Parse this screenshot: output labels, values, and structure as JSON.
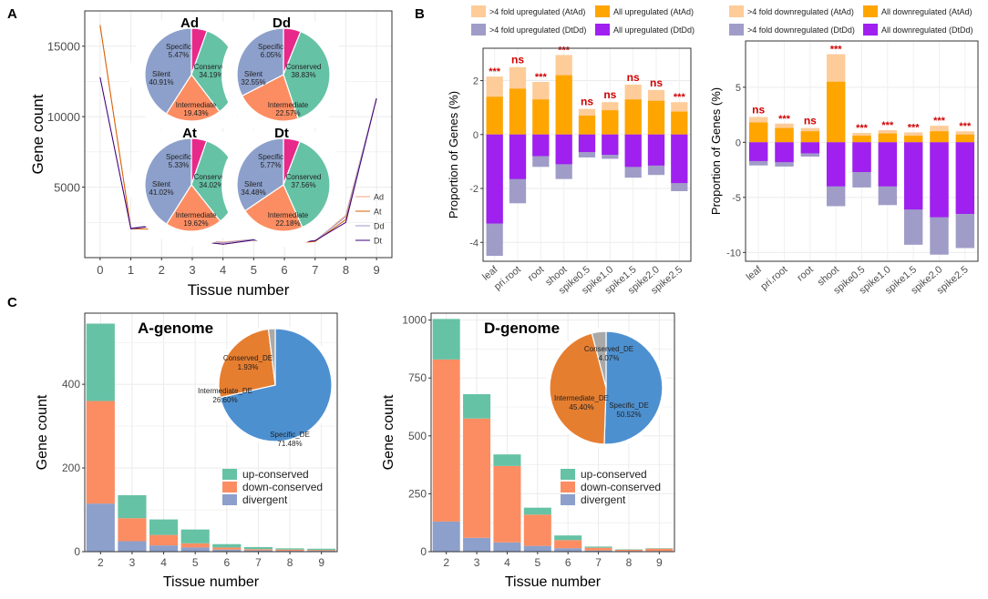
{
  "panel_labels": {
    "a": "A",
    "b": "B",
    "c": "C"
  },
  "colors": {
    "ad": "#f4a582",
    "at": "#d95f02",
    "dd": "#9e9ac8",
    "dt": "#3f007d",
    "pie_specific": "#e7298a",
    "pie_conserved": "#66c2a5",
    "pie_intermediate": "#fc8d62",
    "pie_silent": "#8da0cb",
    "light_orange": "#fdcc99",
    "orange": "#ffa500",
    "light_purple": "#a09cc8",
    "purple": "#a020f0",
    "up_conserved": "#66c2a5",
    "down_conserved": "#fc8d62",
    "divergent": "#8da0cb",
    "spec_de": "#4d90d0",
    "inter_de": "#e67e30",
    "cons_de": "#a9a9a9",
    "sig": "#d00000"
  },
  "chart_data": [
    {
      "id": "A",
      "type": "line",
      "xlabel": "Tissue number",
      "ylabel": "Gene count",
      "x": [
        0,
        1,
        2,
        3,
        4,
        5,
        6,
        7,
        8,
        9
      ],
      "xticks": [
        "0",
        "1",
        "2",
        "3",
        "4",
        "5",
        "6",
        "7",
        "8",
        "9"
      ],
      "ylim": [
        0,
        17500
      ],
      "yticks": [
        5000,
        10000,
        15000
      ],
      "legend": [
        "Ad",
        "At",
        "Dd",
        "Dt"
      ],
      "series": [
        {
          "name": "Ad",
          "values": [
            16500,
            2100,
            2350,
            1300,
            1100,
            1300,
            1000,
            1150,
            3000,
            11300
          ]
        },
        {
          "name": "At",
          "values": [
            16500,
            2050,
            2000,
            1200,
            950,
            1250,
            950,
            1150,
            2700,
            11300
          ]
        },
        {
          "name": "Dd",
          "values": [
            12800,
            2100,
            2400,
            1300,
            1050,
            1300,
            1050,
            1200,
            2900,
            11300
          ]
        },
        {
          "name": "Dt",
          "values": [
            12800,
            2050,
            2300,
            1200,
            950,
            1250,
            950,
            1200,
            2500,
            11300
          ]
        }
      ],
      "pies": [
        {
          "title": "Ad",
          "slices": [
            {
              "label": "Specific",
              "value": 5.47,
              "text": "5.47%"
            },
            {
              "label": "Conserved",
              "value": 34.19,
              "text": "34.19%"
            },
            {
              "label": "Intermediate",
              "value": 19.43,
              "text": "19.43%"
            },
            {
              "label": "Silent",
              "value": 40.91,
              "text": "40.91%"
            }
          ]
        },
        {
          "title": "Dd",
          "slices": [
            {
              "label": "Specific",
              "value": 6.05,
              "text": "6.05%"
            },
            {
              "label": "Conserved",
              "value": 38.83,
              "text": "38.83%"
            },
            {
              "label": "Intermediate",
              "value": 22.57,
              "text": "22.57%"
            },
            {
              "label": "Silent",
              "value": 32.55,
              "text": "32.55%"
            }
          ]
        },
        {
          "title": "At",
          "slices": [
            {
              "label": "Specific",
              "value": 5.33,
              "text": "5.33%"
            },
            {
              "label": "Conserved",
              "value": 34.02,
              "text": "34.02%"
            },
            {
              "label": "Intermediate",
              "value": 19.62,
              "text": "19.62%"
            },
            {
              "label": "Silent",
              "value": 41.02,
              "text": "41.02%"
            }
          ]
        },
        {
          "title": "Dt",
          "slices": [
            {
              "label": "Specific",
              "value": 5.77,
              "text": "5.77%"
            },
            {
              "label": "Conserved",
              "value": 37.56,
              "text": "37.56%"
            },
            {
              "label": "Intermediate",
              "value": 22.18,
              "text": "22.18%"
            },
            {
              "label": "Silent",
              "value": 34.48,
              "text": "34.48%"
            }
          ]
        }
      ]
    },
    {
      "id": "B1",
      "type": "bar",
      "ylabel": "Proportion of Genes (%)",
      "categories": [
        "leaf",
        "pri.root",
        "root",
        "shoot",
        "spike0.5",
        "spike1.0",
        "spike1.5",
        "spike2.0",
        "spike2.5"
      ],
      "ylim": [
        -4.7,
        3.2
      ],
      "yticks": [
        2,
        0,
        -2,
        -4
      ],
      "legend": [
        ">4 fold upregulated (AtAd)",
        "All upregulated (AtAd)",
        ">4 fold upregulated (DtDd)",
        "All upregulated (DtDd)"
      ],
      "series": [
        {
          "name": "All upregulated (AtAd)",
          "values": [
            2.15,
            2.5,
            1.95,
            2.95,
            0.95,
            1.2,
            1.85,
            1.65,
            1.2
          ]
        },
        {
          "name": ">4 fold upregulated (AtAd)",
          "values": [
            1.4,
            1.7,
            1.3,
            2.2,
            0.7,
            0.9,
            1.3,
            1.25,
            0.85
          ]
        },
        {
          "name": "All upregulated (DtDd)",
          "values": [
            -4.5,
            -2.55,
            -1.2,
            -1.65,
            -0.85,
            -0.9,
            -1.6,
            -1.5,
            -2.1
          ]
        },
        {
          "name": ">4 fold upregulated (DtDd)",
          "values": [
            -3.3,
            -1.65,
            -0.8,
            -1.1,
            -0.65,
            -0.75,
            -1.2,
            -1.15,
            -1.8
          ]
        }
      ],
      "significance": [
        "***",
        "ns",
        "***",
        "***",
        "ns",
        "ns",
        "ns",
        "ns",
        "***"
      ]
    },
    {
      "id": "B2",
      "type": "bar",
      "ylabel": "Proportion of Genes (%)",
      "categories": [
        "leaf",
        "pri.root",
        "root",
        "shoot",
        "spike0.5",
        "spike1.0",
        "spike1.5",
        "spike2.0",
        "spike2.5"
      ],
      "ylim": [
        -10.8,
        9.2
      ],
      "yticks": [
        5,
        0,
        -5,
        -10
      ],
      "legend": [
        ">4 fold downregulated (AtAd)",
        "All downregulated (AtAd)",
        ">4 fold downregulated (DtDd)",
        "All downregulated (DtDd)"
      ],
      "series": [
        {
          "name": "All downregulated (AtAd)",
          "values": [
            2.3,
            1.7,
            1.3,
            8.0,
            0.85,
            1.1,
            0.9,
            1.5,
            1.0
          ]
        },
        {
          "name": ">4 fold downregulated (AtAd)",
          "values": [
            1.8,
            1.3,
            1.0,
            5.5,
            0.6,
            0.8,
            0.6,
            1.0,
            0.7
          ]
        },
        {
          "name": "All downregulated (DtDd)",
          "values": [
            -2.1,
            -2.2,
            -1.3,
            -5.8,
            -4.1,
            -5.7,
            -9.3,
            -10.2,
            -9.6
          ]
        },
        {
          "name": ">4 fold downregulated (DtDd)",
          "values": [
            -1.7,
            -1.8,
            -1.0,
            -4.0,
            -2.7,
            -4.0,
            -6.1,
            -6.8,
            -6.5
          ]
        }
      ],
      "significance": [
        "ns",
        "***",
        "ns",
        "***",
        "***",
        "***",
        "***",
        "***",
        "***"
      ]
    },
    {
      "id": "C1",
      "type": "bar",
      "title": "A-genome",
      "xlabel": "Tissue number",
      "ylabel": "Gene count",
      "categories": [
        "2",
        "3",
        "4",
        "5",
        "6",
        "7",
        "8",
        "9"
      ],
      "ylim": [
        0,
        570
      ],
      "yticks": [
        0,
        200,
        400
      ],
      "legend": [
        "up-conserved",
        "down-conserved",
        "divergent"
      ],
      "series": [
        {
          "name": "divergent",
          "values": [
            115,
            25,
            15,
            10,
            5,
            3,
            2,
            2
          ]
        },
        {
          "name": "down-conserved",
          "values": [
            245,
            55,
            25,
            10,
            5,
            3,
            3,
            2
          ]
        },
        {
          "name": "up-conserved",
          "values": [
            185,
            55,
            37,
            33,
            8,
            5,
            3,
            3
          ]
        }
      ],
      "pie": {
        "slices": [
          {
            "label": "Specific_DE",
            "value": 71.48,
            "text": "71.48%"
          },
          {
            "label": "Intermediate_DE",
            "value": 26.6,
            "text": "26.60%"
          },
          {
            "label": "Conserved_DE",
            "value": 1.93,
            "text": "1.93%"
          }
        ]
      }
    },
    {
      "id": "C2",
      "type": "bar",
      "title": "D-genome",
      "xlabel": "Tissue number",
      "ylabel": "Gene count",
      "categories": [
        "2",
        "3",
        "4",
        "5",
        "6",
        "7",
        "8",
        "9"
      ],
      "ylim": [
        0,
        1030
      ],
      "yticks": [
        0,
        250,
        500,
        750,
        1000
      ],
      "legend": [
        "up-conserved",
        "down-conserved",
        "divergent"
      ],
      "series": [
        {
          "name": "divergent",
          "values": [
            130,
            60,
            40,
            25,
            15,
            5,
            3,
            3
          ]
        },
        {
          "name": "down-conserved",
          "values": [
            700,
            515,
            330,
            135,
            35,
            12,
            5,
            10
          ]
        },
        {
          "name": "up-conserved",
          "values": [
            175,
            105,
            50,
            30,
            20,
            5,
            2,
            2
          ]
        }
      ],
      "pie": {
        "slices": [
          {
            "label": "Specific_DE",
            "value": 50.52,
            "text": "50.52%"
          },
          {
            "label": "Intermediate_DE",
            "value": 45.4,
            "text": "45.40%"
          },
          {
            "label": "Conserved_DE",
            "value": 4.07,
            "text": "4.07%"
          }
        ]
      }
    }
  ]
}
